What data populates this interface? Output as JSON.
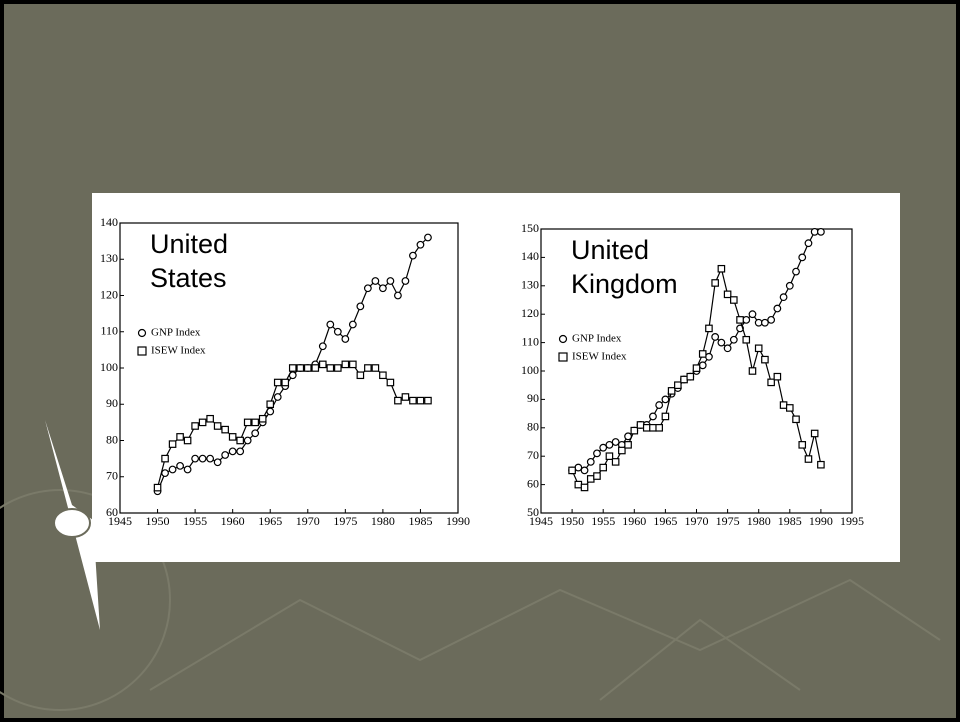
{
  "chart_data": [
    {
      "type": "line",
      "title": "United States",
      "x": [
        1950,
        1951,
        1952,
        1953,
        1954,
        1955,
        1956,
        1957,
        1958,
        1959,
        1960,
        1961,
        1962,
        1963,
        1964,
        1965,
        1966,
        1967,
        1968,
        1969,
        1970,
        1971,
        1972,
        1973,
        1974,
        1975,
        1976,
        1977,
        1978,
        1979,
        1980,
        1981,
        1982,
        1983,
        1984,
        1985,
        1986
      ],
      "series": [
        {
          "name": "GNP Index",
          "color": "#000000",
          "marker": "circle",
          "values": [
            66,
            71,
            72,
            73,
            72,
            75,
            75,
            75,
            74,
            76,
            77,
            77,
            80,
            82,
            85,
            88,
            92,
            95,
            98,
            100,
            100,
            101,
            106,
            112,
            110,
            108,
            112,
            117,
            122,
            124,
            122,
            124,
            120,
            124,
            131,
            134,
            136
          ]
        },
        {
          "name": "ISEW Index",
          "color": "#000000",
          "marker": "square",
          "values": [
            67,
            75,
            79,
            81,
            80,
            84,
            85,
            86,
            84,
            83,
            81,
            80,
            85,
            85,
            86,
            90,
            96,
            96,
            100,
            100,
            100,
            100,
            101,
            100,
            100,
            101,
            101,
            98,
            100,
            100,
            98,
            96,
            91,
            92,
            91,
            91,
            91
          ]
        }
      ],
      "xlim": [
        1945,
        1990
      ],
      "xticks": [
        1945,
        1950,
        1955,
        1960,
        1965,
        1970,
        1975,
        1980,
        1985,
        1990
      ],
      "ylim": [
        60,
        140
      ],
      "yticks": [
        60,
        70,
        80,
        90,
        100,
        110,
        120,
        130,
        140
      ],
      "legend": "upper left"
    },
    {
      "type": "line",
      "title": "United Kingdom",
      "x": [
        1950,
        1951,
        1952,
        1953,
        1954,
        1955,
        1956,
        1957,
        1958,
        1959,
        1960,
        1961,
        1962,
        1963,
        1964,
        1965,
        1966,
        1967,
        1968,
        1969,
        1970,
        1971,
        1972,
        1973,
        1974,
        1975,
        1976,
        1977,
        1978,
        1979,
        1980,
        1981,
        1982,
        1983,
        1984,
        1985,
        1986,
        1987,
        1988,
        1989,
        1990
      ],
      "series": [
        {
          "name": "GNP Index",
          "color": "#000000",
          "marker": "circle",
          "values": [
            65,
            66,
            65,
            68,
            71,
            73,
            74,
            75,
            74,
            77,
            79,
            81,
            81,
            84,
            88,
            90,
            92,
            94,
            97,
            98,
            100,
            102,
            105,
            112,
            110,
            108,
            111,
            115,
            118,
            120,
            117,
            117,
            118,
            122,
            126,
            130,
            135,
            140,
            145,
            149,
            149
          ]
        },
        {
          "name": "ISEW Index",
          "color": "#000000",
          "marker": "square",
          "values": [
            65,
            60,
            59,
            62,
            63,
            66,
            70,
            68,
            72,
            74,
            79,
            81,
            80,
            80,
            80,
            84,
            93,
            95,
            97,
            98,
            101,
            106,
            115,
            131,
            136,
            127,
            125,
            118,
            111,
            100,
            108,
            104,
            96,
            98,
            88,
            87,
            83,
            74,
            69,
            78,
            67
          ]
        }
      ],
      "xlim": [
        1945,
        1995
      ],
      "xticks": [
        1945,
        1950,
        1955,
        1960,
        1965,
        1970,
        1975,
        1980,
        1985,
        1990,
        1995
      ],
      "ylim": [
        50,
        150
      ],
      "yticks": [
        50,
        60,
        70,
        80,
        90,
        100,
        110,
        120,
        130,
        140,
        150
      ],
      "legend": "upper left"
    }
  ]
}
